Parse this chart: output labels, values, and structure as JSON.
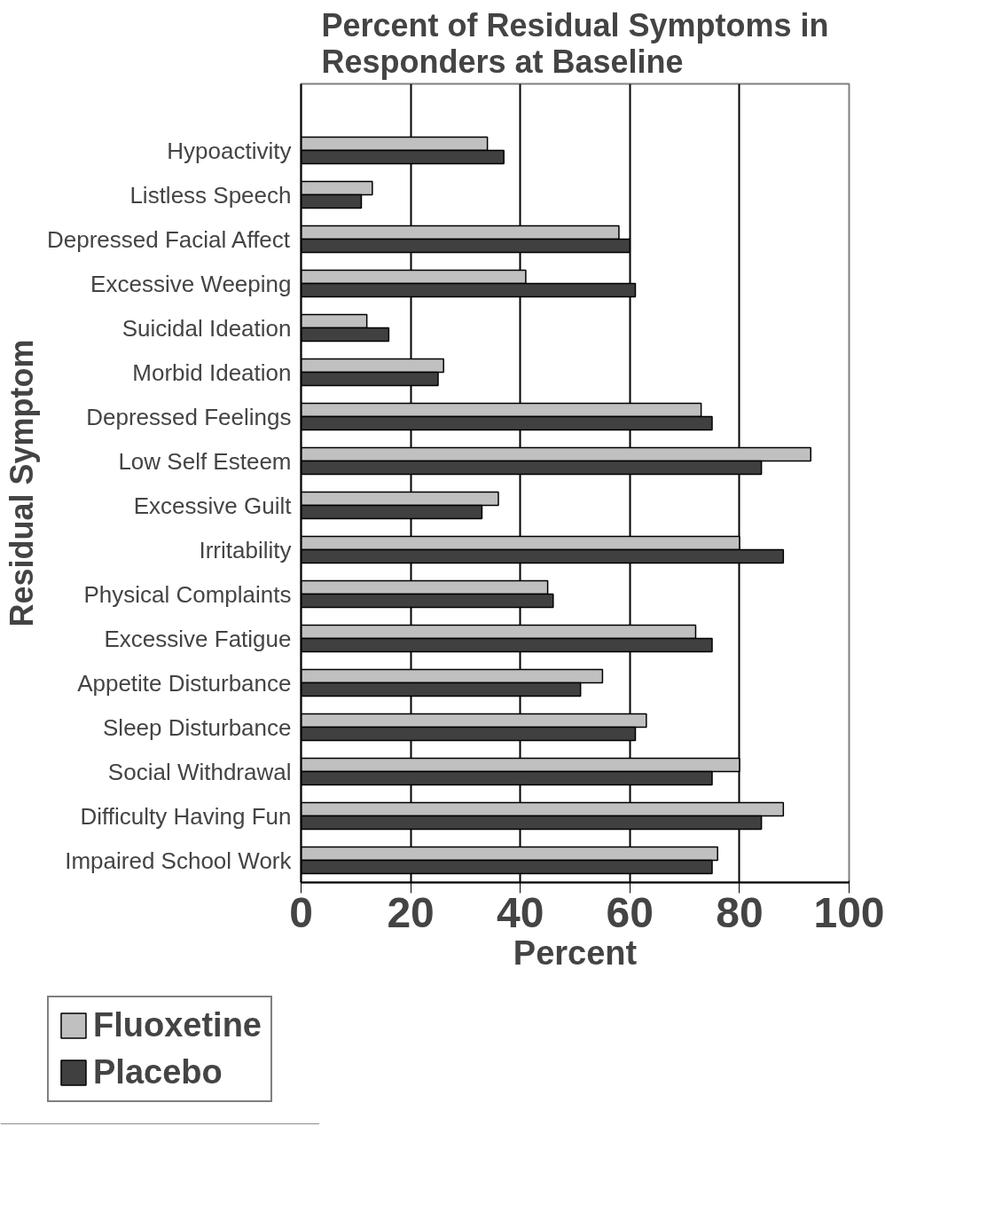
{
  "chart_data": {
    "type": "bar",
    "orientation": "horizontal",
    "title": "Percent of Residual Symptoms in Responders at Baseline",
    "xlabel": "Percent",
    "ylabel": "Residual Symptom",
    "categories": [
      null,
      "Hypoactivity",
      "Listless Speech",
      "Depressed Facial Affect",
      "Excessive Weeping",
      "Suicidal Ideation",
      "Morbid Ideation",
      "Depressed Feelings",
      "Low Self Esteem",
      "Excessive Guilt",
      "Irritability",
      "Physical Complaints",
      "Excessive Fatigue",
      "Appetite Disturbance",
      "Sleep Disturbance",
      "Social Withdrawal",
      "Difficulty Having Fun",
      "Impaired School Work"
    ],
    "series": [
      {
        "name": "Fluoxetine",
        "color": "#c0c0c0",
        "values": [
          null,
          34,
          13,
          58,
          41,
          12,
          26,
          73,
          93,
          36,
          80,
          45,
          72,
          55,
          63,
          80,
          88,
          76
        ]
      },
      {
        "name": "Placebo",
        "color": "#404040",
        "values": [
          null,
          37,
          11,
          60,
          61,
          16,
          25,
          75,
          84,
          33,
          88,
          46,
          75,
          51,
          61,
          75,
          84,
          75
        ]
      }
    ],
    "xlim": [
      0,
      100
    ],
    "xticks": [
      0,
      20,
      40,
      60,
      80,
      100
    ],
    "grid": "x",
    "legend": "bottom left"
  }
}
